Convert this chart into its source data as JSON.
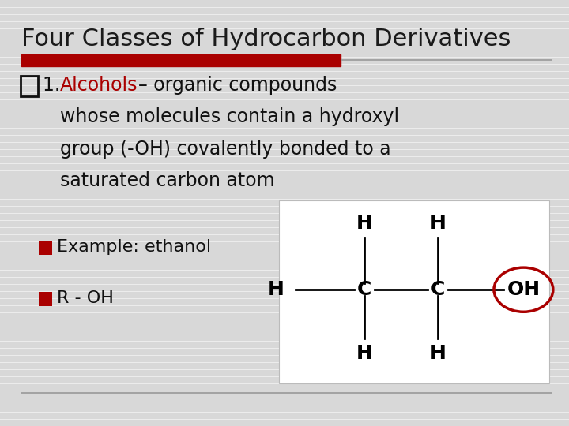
{
  "title": "Four Classes of Hydrocarbon Derivatives",
  "background_color": "#d8d8d8",
  "title_fontsize": 22,
  "title_color": "#1a1a1a",
  "red_color": "#aa0000",
  "black_color": "#111111",
  "gray_line_color": "#999999",
  "sub_bullet1": "Example: ethanol",
  "sub_bullet2": "R - OH",
  "body_fontsize": 17,
  "sub_fontsize": 16,
  "mol_fontsize": 18
}
